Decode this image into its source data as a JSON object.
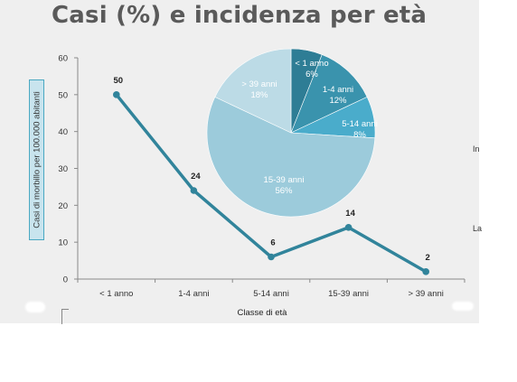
{
  "title": "Casi (%) e incidenza per età",
  "edge_text": {
    "upper": "In",
    "lower": "La"
  },
  "colors": {
    "line": "#31849b",
    "ylabel_box": "#c8e4ee",
    "pie": [
      "#2e7d95",
      "#3a93ad",
      "#4aaccb",
      "#9ccbdb",
      "#bcdbe6"
    ]
  },
  "chart_data": [
    {
      "type": "line",
      "categories": [
        "< 1 anno",
        "1-4 anni",
        "5-14 anni",
        "15-39 anni",
        "> 39 anni"
      ],
      "values": [
        50,
        24,
        6,
        14,
        2
      ],
      "data_labels": [
        "50",
        "24",
        "6",
        "14",
        "2"
      ],
      "xlabel": "Classe di età",
      "ylabel": "Casi di morbillo per 100.000 abitanti",
      "ylim": [
        0,
        60
      ],
      "yticks": [
        "0",
        "10",
        "20",
        "30",
        "40",
        "50",
        "60"
      ],
      "grid": false
    },
    {
      "type": "pie",
      "categories": [
        "< 1 anno",
        "1-4 anni",
        "5-14 anni",
        "15-39 anni",
        "> 39 anni"
      ],
      "values": [
        6,
        12,
        8,
        56,
        18
      ],
      "labels": [
        "6%",
        "12%",
        "8%",
        "56%",
        "18%"
      ]
    }
  ]
}
